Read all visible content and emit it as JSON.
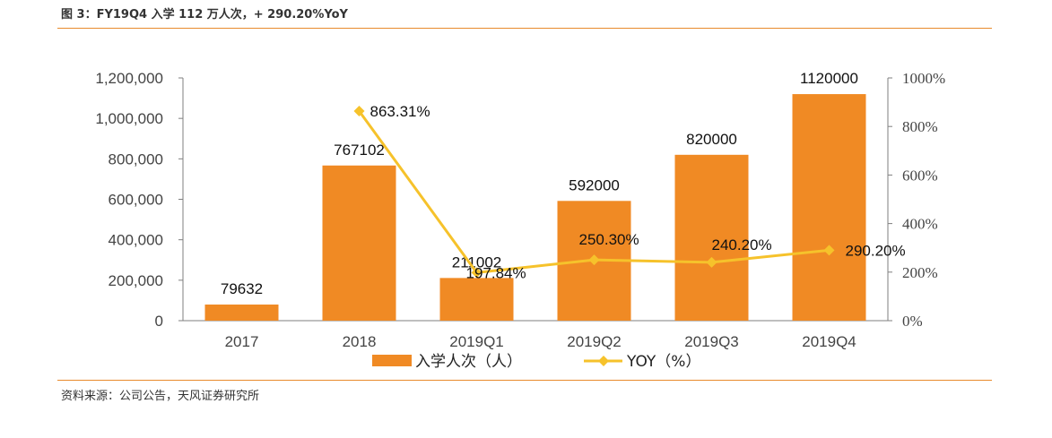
{
  "header": {
    "title": "图 3：FY19Q4 入学 112 万人次，+ 290.20%YoY"
  },
  "footer": {
    "source": "资料来源：公司公告，天风证券研究所"
  },
  "colors": {
    "bar": "#f08a24",
    "line": "#f6c22b",
    "rule": "#e88a2c"
  },
  "chart_data": {
    "type": "bar",
    "categories": [
      "2017",
      "2018",
      "2019Q1",
      "2019Q2",
      "2019Q3",
      "2019Q4"
    ],
    "series": [
      {
        "name": "入学人次（人）",
        "type": "bar",
        "axis": "left",
        "values": [
          79632,
          767102,
          211002,
          592000,
          820000,
          1120000
        ],
        "labels": [
          "79632",
          "767102",
          "211002",
          "592000",
          "820000",
          "1120000"
        ]
      },
      {
        "name": "YOY（%）",
        "type": "line",
        "axis": "right",
        "values": [
          null,
          863.31,
          197.84,
          250.3,
          240.2,
          290.2
        ],
        "labels": [
          "",
          "863.31%",
          "197.84%",
          "250.30%",
          "240.20%",
          "290.20%"
        ]
      }
    ],
    "y_left": {
      "ylim": [
        0,
        1200000
      ],
      "ticks": [
        "0",
        "200,000",
        "400,000",
        "600,000",
        "800,000",
        "1,000,000",
        "1,200,000"
      ]
    },
    "y_right": {
      "ylim": [
        0,
        1000
      ],
      "ticks": [
        "0%",
        "200%",
        "400%",
        "600%",
        "800%",
        "1000%"
      ]
    },
    "legend_position": "bottom",
    "grid": false
  }
}
